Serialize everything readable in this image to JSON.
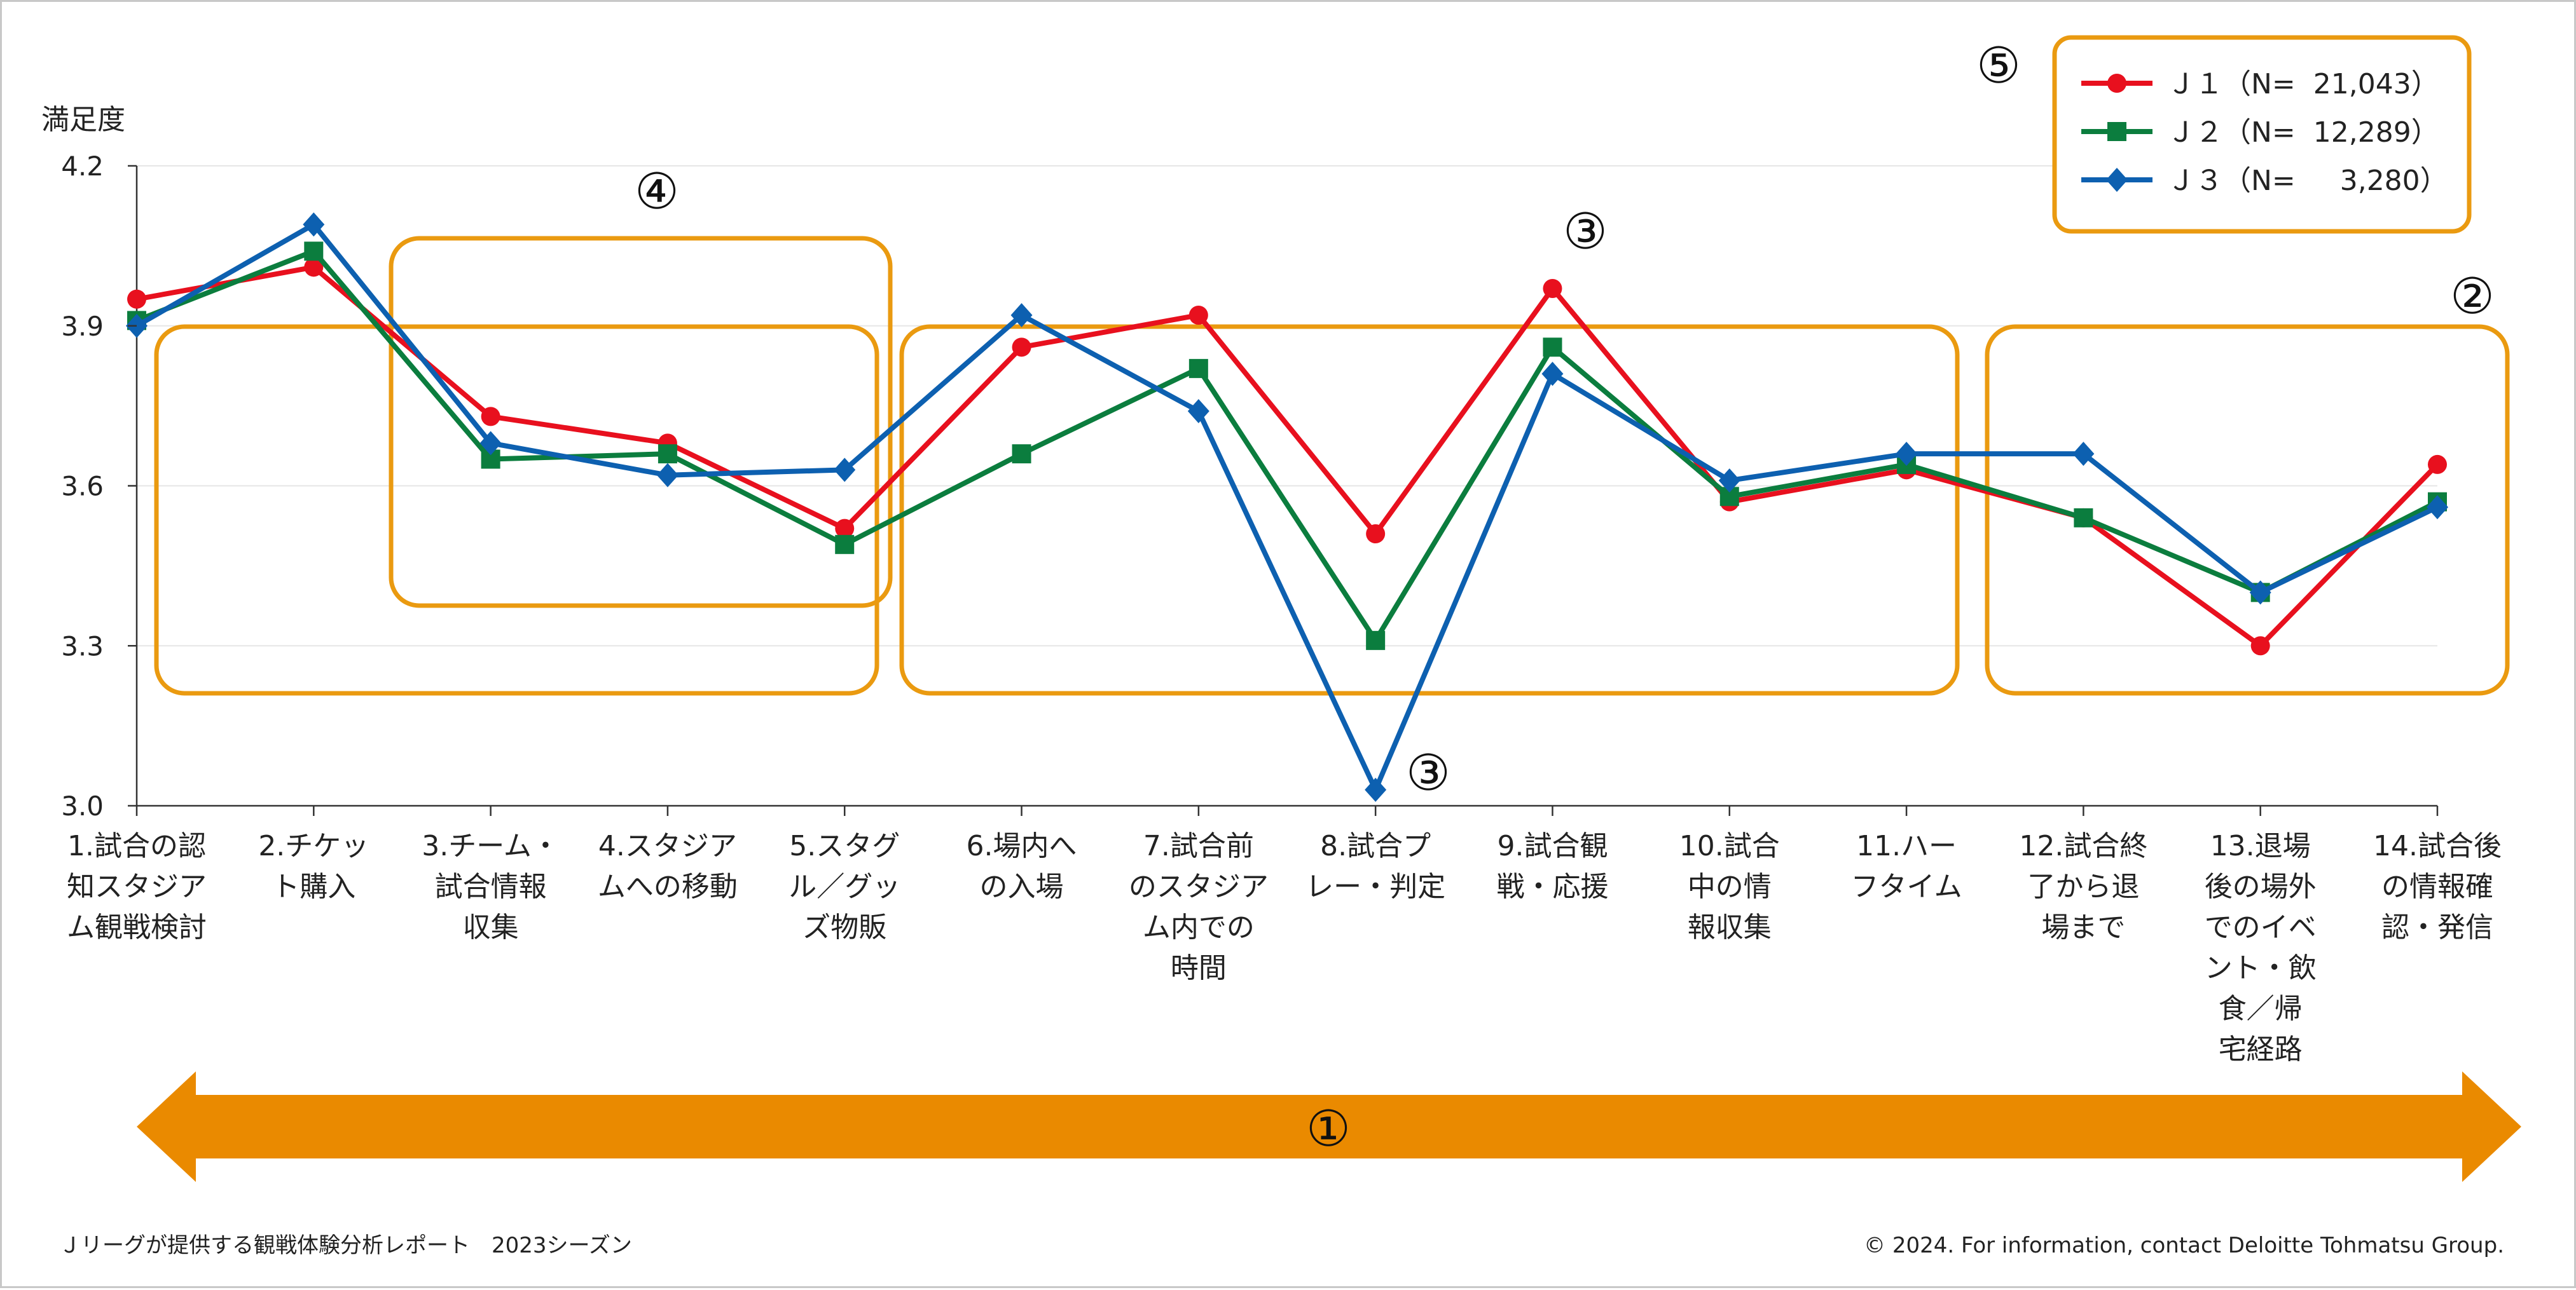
{
  "chart_data": {
    "type": "line",
    "ylabel": "満足度",
    "ylim": [
      3.0,
      4.2
    ],
    "yticks": [
      "3.0",
      "3.3",
      "3.6",
      "3.9",
      "4.2"
    ],
    "grid": "horizontal",
    "legend_position": "top-right",
    "categories": [
      [
        "1.試合の認",
        "知スタジア",
        "ム観戦検討"
      ],
      [
        "2.チケッ",
        "ト購入"
      ],
      [
        "3.チーム・",
        "試合情報",
        "収集"
      ],
      [
        "4.スタジア",
        "ムへの移動"
      ],
      [
        "5.スタグ",
        "ル／グッ",
        "ズ物販"
      ],
      [
        "6.場内へ",
        "の入場"
      ],
      [
        "7.試合前",
        "のスタジア",
        "ム内での",
        "時間"
      ],
      [
        "8.試合プ",
        "レー・判定"
      ],
      [
        "9.試合観",
        "戦・応援"
      ],
      [
        "10.試合",
        "中の情",
        "報収集"
      ],
      [
        "11.ハー",
        "フタイム"
      ],
      [
        "12.試合終",
        "了から退",
        "場まで"
      ],
      [
        "13.退場",
        "後の場外",
        "でのイベ",
        "ント・飲",
        "食／帰",
        "宅経路"
      ],
      [
        "14.試合後",
        "の情報確",
        "認・発信"
      ]
    ],
    "series": [
      {
        "name": "Ｊ１（N=  21,043）",
        "color": "#e8101e",
        "marker": "circle",
        "values": [
          3.95,
          4.01,
          3.73,
          3.68,
          3.52,
          3.86,
          3.92,
          3.51,
          3.97,
          3.57,
          3.63,
          3.54,
          3.3,
          3.64
        ]
      },
      {
        "name": "Ｊ２（N=  12,289）",
        "color": "#0b7d3e",
        "marker": "square",
        "values": [
          3.91,
          4.04,
          3.65,
          3.66,
          3.49,
          3.66,
          3.82,
          3.31,
          3.86,
          3.58,
          3.64,
          3.54,
          3.4,
          3.57
        ]
      },
      {
        "name": "Ｊ３（N=     3,280）",
        "color": "#0d60b0",
        "marker": "diamond",
        "values": [
          3.9,
          4.09,
          3.68,
          3.62,
          3.63,
          3.92,
          3.74,
          3.03,
          3.81,
          3.61,
          3.66,
          3.66,
          3.4,
          3.56
        ]
      }
    ],
    "annotations": [
      "①",
      "②",
      "③",
      "③",
      "④",
      "⑤"
    ],
    "arrow_color": "#ea8a00",
    "box_color": "#ea9a10"
  },
  "footer": {
    "left": "Ｊリーグが提供する観戦体験分析レポート　2023シーズン",
    "right": "© 2024. For information, contact Deloitte Tohmatsu Group."
  }
}
